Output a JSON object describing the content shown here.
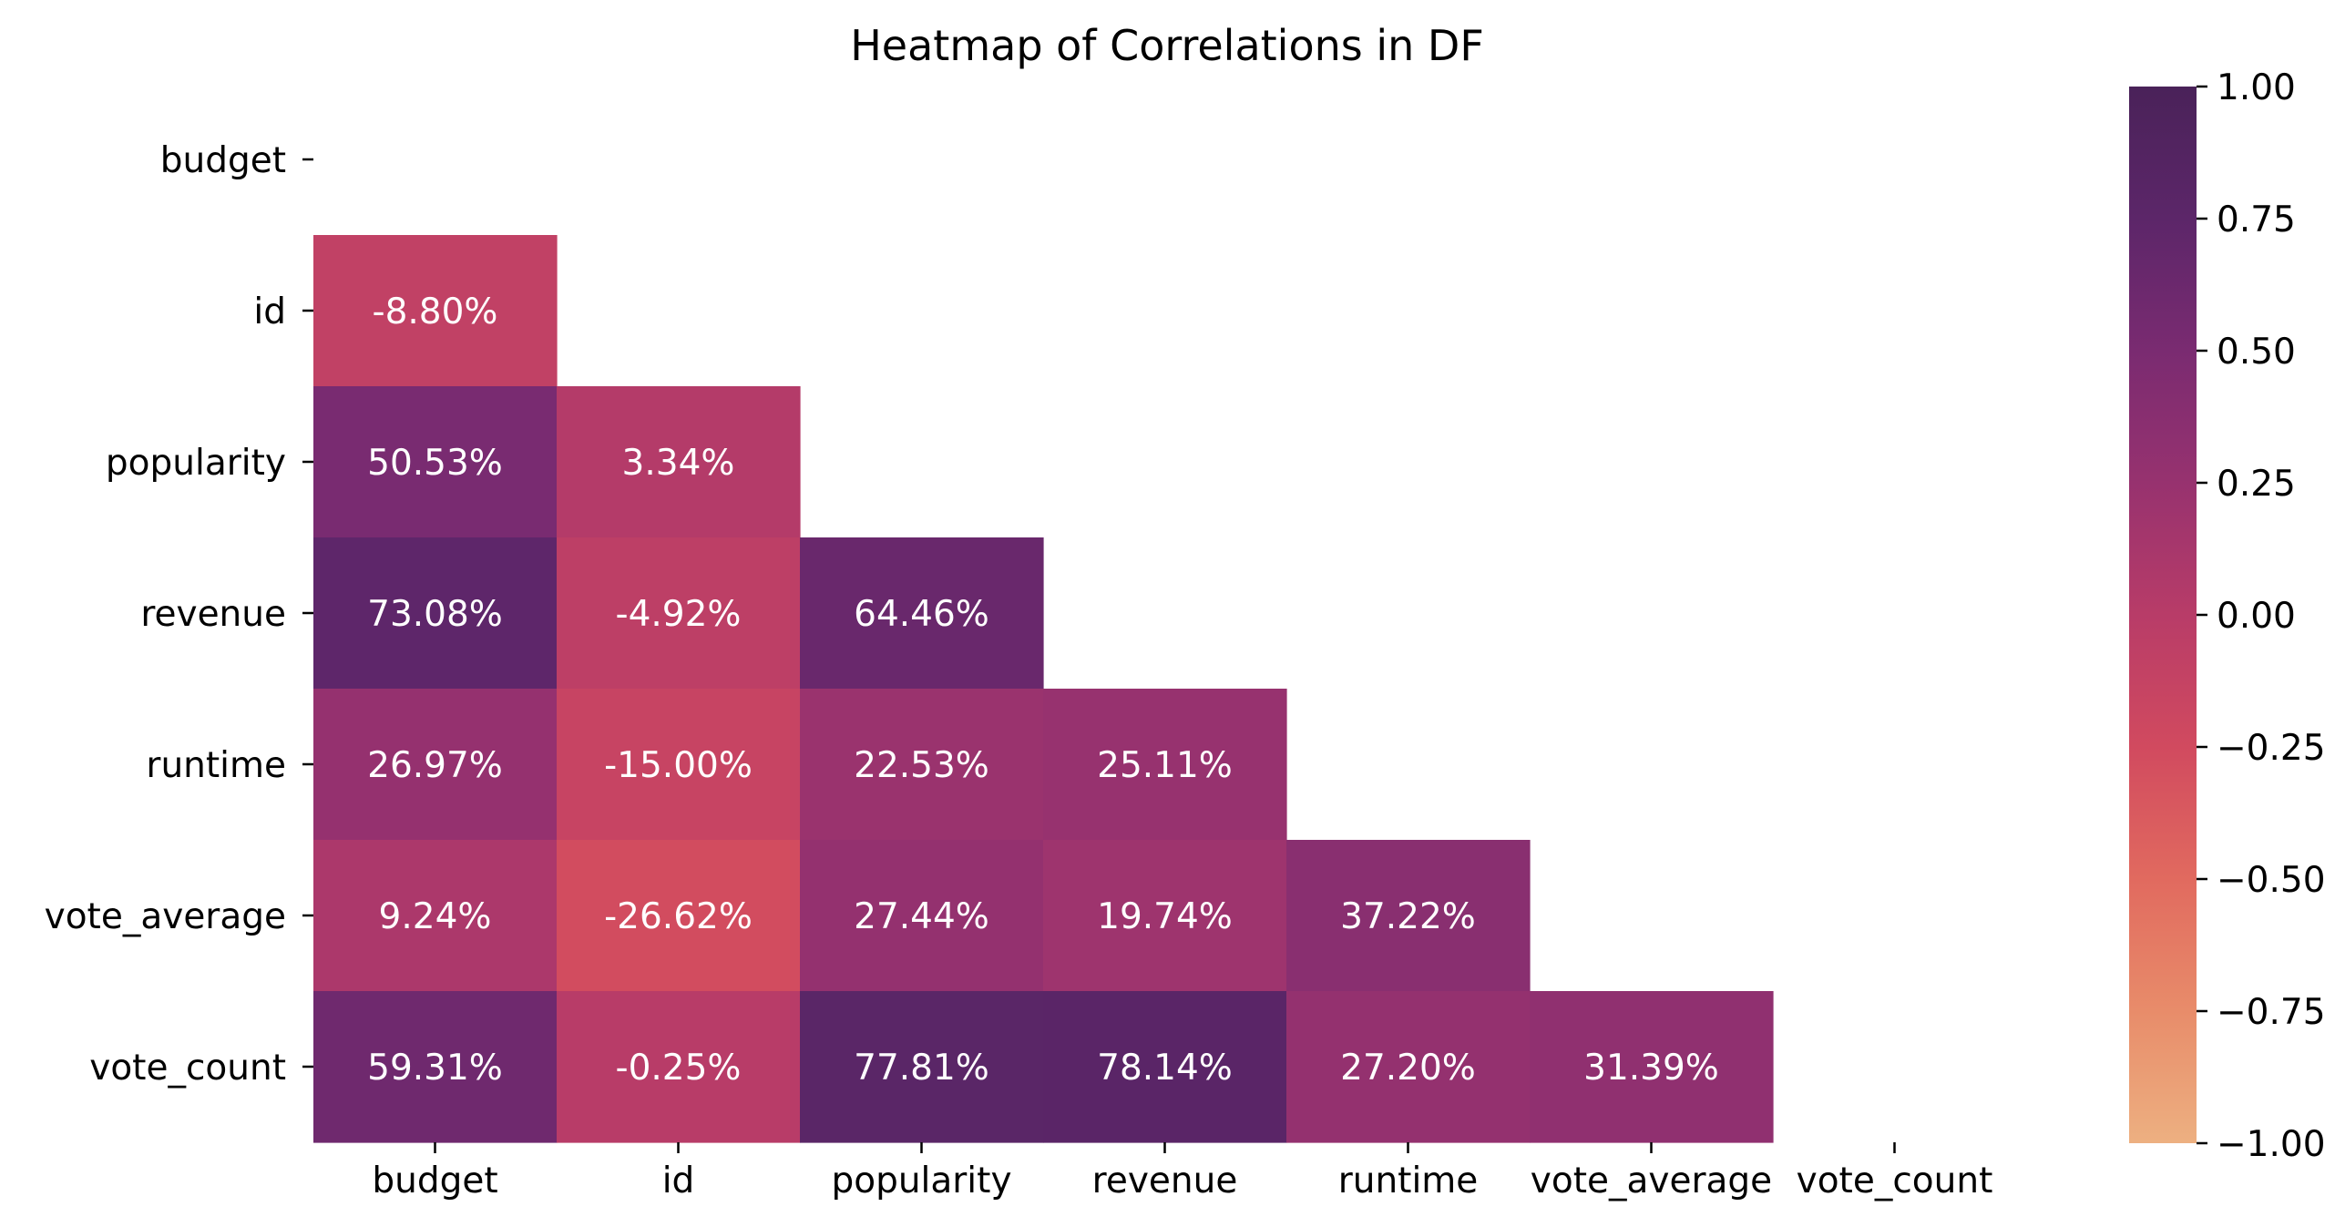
{
  "chart_data": {
    "type": "heatmap",
    "title": "Heatmap of Correlations in DF",
    "variables": [
      "budget",
      "id",
      "popularity",
      "revenue",
      "runtime",
      "vote_average",
      "vote_count"
    ],
    "mask": "upper-triangle-and-diagonal",
    "cells": [
      {
        "row": "id",
        "col": "budget",
        "value": -0.088,
        "label": "-8.80%"
      },
      {
        "row": "popularity",
        "col": "budget",
        "value": 0.5053,
        "label": "50.53%"
      },
      {
        "row": "popularity",
        "col": "id",
        "value": 0.0334,
        "label": "3.34%"
      },
      {
        "row": "revenue",
        "col": "budget",
        "value": 0.7308,
        "label": "73.08%"
      },
      {
        "row": "revenue",
        "col": "id",
        "value": -0.0492,
        "label": "-4.92%"
      },
      {
        "row": "revenue",
        "col": "popularity",
        "value": 0.6446,
        "label": "64.46%"
      },
      {
        "row": "runtime",
        "col": "budget",
        "value": 0.2697,
        "label": "26.97%"
      },
      {
        "row": "runtime",
        "col": "id",
        "value": -0.15,
        "label": "-15.00%"
      },
      {
        "row": "runtime",
        "col": "popularity",
        "value": 0.2253,
        "label": "22.53%"
      },
      {
        "row": "runtime",
        "col": "revenue",
        "value": 0.2511,
        "label": "25.11%"
      },
      {
        "row": "vote_average",
        "col": "budget",
        "value": 0.0924,
        "label": "9.24%"
      },
      {
        "row": "vote_average",
        "col": "id",
        "value": -0.2662,
        "label": "-26.62%"
      },
      {
        "row": "vote_average",
        "col": "popularity",
        "value": 0.2744,
        "label": "27.44%"
      },
      {
        "row": "vote_average",
        "col": "revenue",
        "value": 0.1974,
        "label": "19.74%"
      },
      {
        "row": "vote_average",
        "col": "runtime",
        "value": 0.3722,
        "label": "37.22%"
      },
      {
        "row": "vote_count",
        "col": "budget",
        "value": 0.5931,
        "label": "59.31%"
      },
      {
        "row": "vote_count",
        "col": "id",
        "value": -0.0025,
        "label": "-0.25%"
      },
      {
        "row": "vote_count",
        "col": "popularity",
        "value": 0.7781,
        "label": "77.81%"
      },
      {
        "row": "vote_count",
        "col": "revenue",
        "value": 0.7814,
        "label": "78.14%"
      },
      {
        "row": "vote_count",
        "col": "runtime",
        "value": 0.272,
        "label": "27.20%"
      },
      {
        "row": "vote_count",
        "col": "vote_average",
        "value": 0.3139,
        "label": "31.39%"
      }
    ],
    "colorbar": {
      "vmin": -1.0,
      "vmax": 1.0,
      "ticks": [
        1.0,
        0.75,
        0.5,
        0.25,
        0.0,
        -0.25,
        -0.5,
        -0.75,
        -1.0
      ],
      "tick_labels": [
        "1.00",
        "0.75",
        "0.50",
        "0.25",
        "0.00",
        "−0.25",
        "−0.50",
        "−0.75",
        "−1.00"
      ],
      "colormap": "flare",
      "colormap_stops": [
        "#EDB081",
        "#E88C6A",
        "#E16A5F",
        "#D14A5F",
        "#B83C68",
        "#97326F",
        "#7A2B71",
        "#5C2669",
        "#4A2259"
      ]
    },
    "xlabel": "",
    "ylabel": "",
    "grid": false,
    "legend": "colorbar-right"
  }
}
